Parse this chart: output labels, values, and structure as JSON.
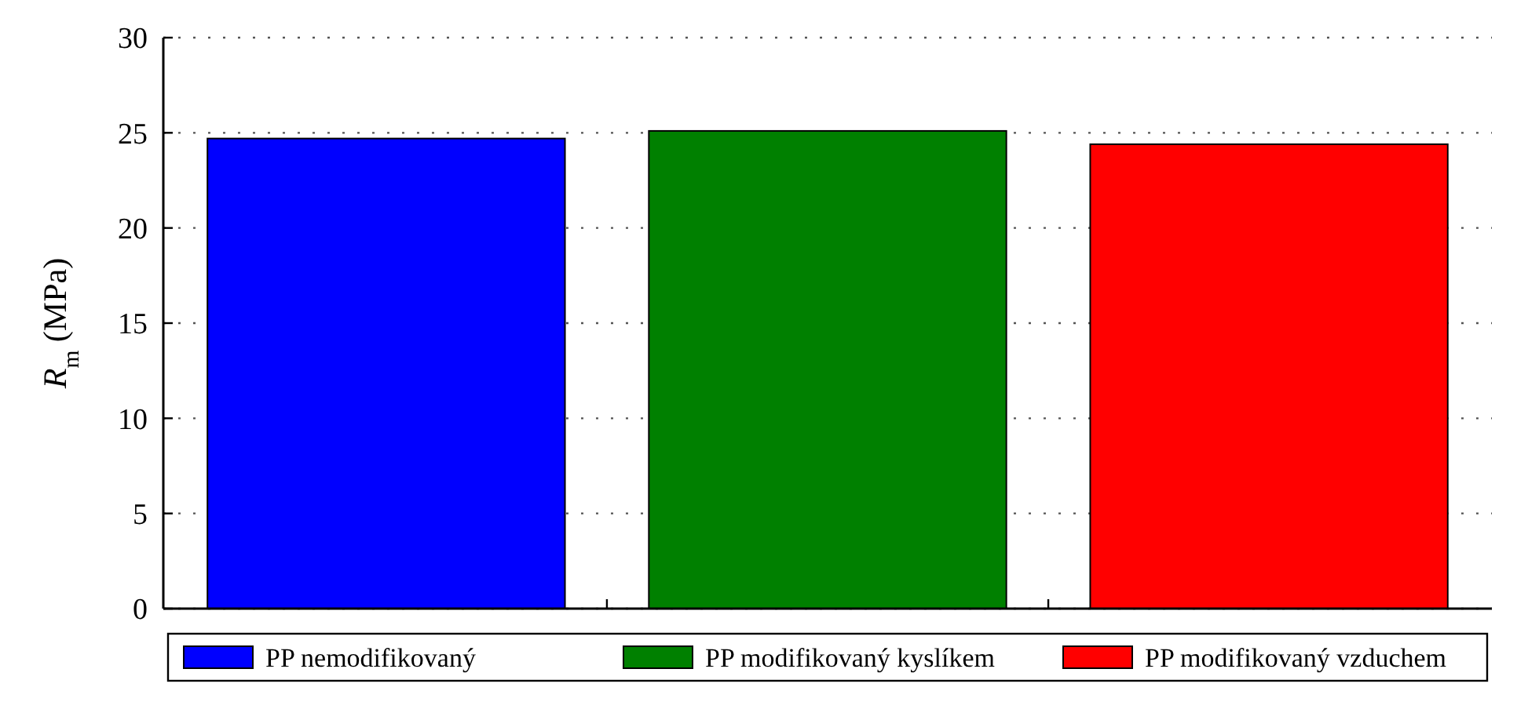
{
  "chart_data": {
    "type": "bar",
    "ylabel": "R$_{m}$ (MPa)",
    "categories": [
      null,
      null,
      null
    ],
    "stacked": true,
    "series": [
      {
        "name": "PP nemodifikovaný",
        "color": "#0000ff",
        "values": [
          24.7,
          null,
          null
        ]
      },
      {
        "name": "PP modifikovaný kyslíkem",
        "color": "#008000",
        "values": [
          null,
          25.1,
          null
        ]
      },
      {
        "name": "PP modifikovaný vzduchem",
        "color": "#ff0000",
        "values": [
          null,
          null,
          24.4
        ]
      }
    ],
    "ylim": [
      0,
      30
    ],
    "yticks": [
      0,
      5,
      10,
      15,
      20,
      25,
      30
    ],
    "grid": "y",
    "legend": "bottom"
  }
}
